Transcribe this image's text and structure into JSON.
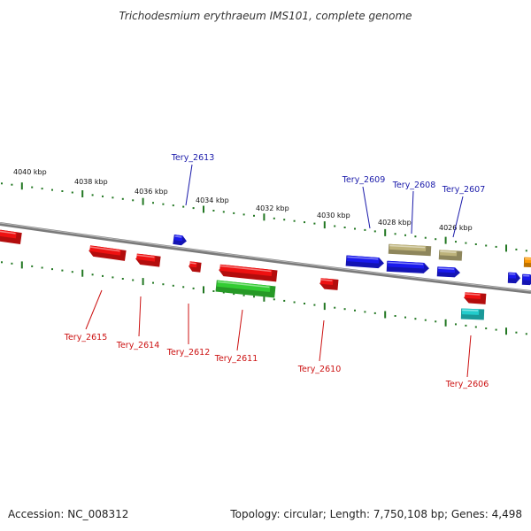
{
  "title": "Trichodesmium erythraeum IMS101, complete genome",
  "colors": {
    "red": "#ee1111",
    "blue": "#1a1aee",
    "green": "#33cc33",
    "khaki": "#bdb27a",
    "cyan": "#22cccc",
    "orange": "#ff9900",
    "backbone": "#888888",
    "ticks": "#227722",
    "upper_label": "#1a1aaa",
    "lower_label": "#cc1111"
  },
  "scale_labels": [
    "4040 kbp",
    "4038 kbp",
    "4036 kbp",
    "4034 kbp",
    "4032 kbp",
    "4030 kbp",
    "4028 kbp",
    "4026 kbp"
  ],
  "upper_labels": [
    "Tery_2613",
    "Tery_2609",
    "Tery_2608",
    "Tery_2607"
  ],
  "lower_labels": [
    "Tery_2615",
    "Tery_2614",
    "Tery_2612",
    "Tery_2611",
    "Tery_2610",
    "Tery_2606"
  ],
  "footer": {
    "accession": "Accession: NC_008312",
    "topology": "Topology: circular; Length: 7,750,108 bp; Genes: 4,498"
  }
}
